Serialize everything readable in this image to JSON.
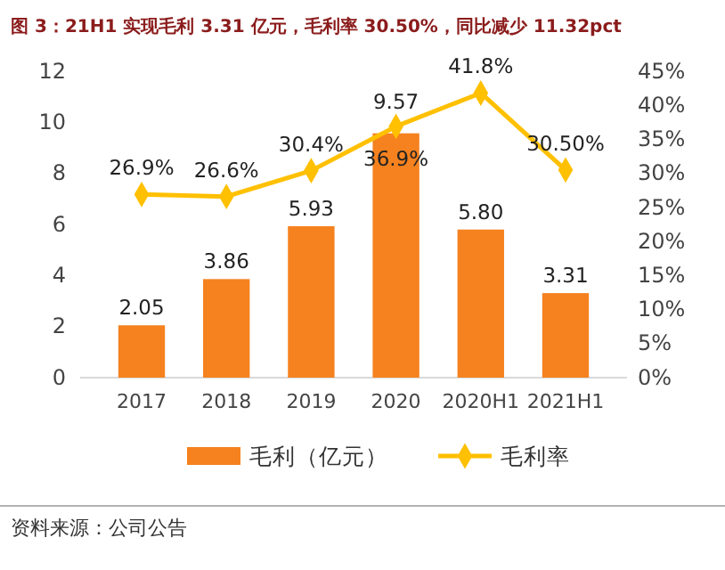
{
  "chart_data": {
    "type": "bar",
    "title": "图 3：21H1 实现毛利 3.31 亿元，毛利率 30.50%，同比减少 11.32pct",
    "categories": [
      "2017",
      "2018",
      "2019",
      "2020",
      "2020H1",
      "2021H1"
    ],
    "series": [
      {
        "name": "毛利（亿元）",
        "color": "#f5821f",
        "values": [
          2.05,
          3.86,
          5.93,
          9.57,
          5.8,
          3.31
        ],
        "value_labels": [
          "2.05",
          "3.86",
          "5.93",
          "9.57",
          "5.80",
          "3.31"
        ]
      },
      {
        "name": "毛利率",
        "type": "line",
        "axis": "y2",
        "color": "#ffc000",
        "marker": "diamond",
        "values": [
          26.9,
          26.6,
          30.4,
          36.9,
          41.8,
          30.5
        ],
        "value_labels": [
          "26.9%",
          "26.6%",
          "30.4%",
          "36.9%",
          "41.8%",
          "30.50%"
        ]
      }
    ],
    "ylim": [
      0,
      12
    ],
    "yticks": [
      0,
      2,
      4,
      6,
      8,
      10,
      12
    ],
    "y2lim": [
      0,
      45
    ],
    "y2ticks": [
      {
        "value": 0,
        "label": "0%"
      },
      {
        "value": 5,
        "label": "5%"
      },
      {
        "value": 10,
        "label": "10%"
      },
      {
        "value": 15,
        "label": "15%"
      },
      {
        "value": 20,
        "label": "20%"
      },
      {
        "value": 25,
        "label": "25%"
      },
      {
        "value": 30,
        "label": "30%"
      },
      {
        "value": 35,
        "label": "35%"
      },
      {
        "value": 40,
        "label": "40%"
      },
      {
        "value": 45,
        "label": "45%"
      }
    ],
    "legend": "bottom",
    "annotations": [
      "资料来源：公司公告"
    ]
  }
}
